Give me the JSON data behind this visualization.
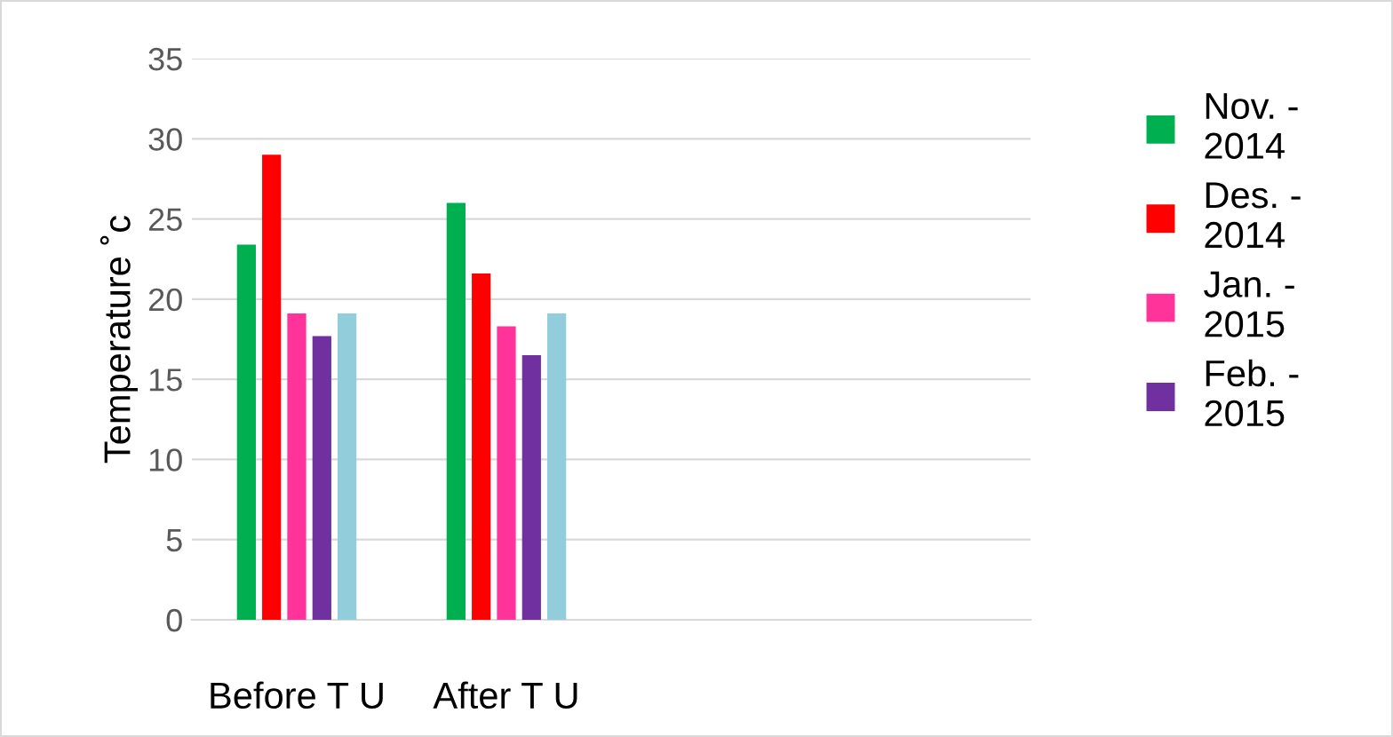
{
  "chart_data": {
    "type": "bar",
    "ylabel": "Temperature ˚c",
    "categories": [
      "Before T U",
      "After T U",
      null,
      null
    ],
    "series": [
      {
        "name": "Nov. -\n2014",
        "color": "#00b050",
        "values": [
          23.4,
          26.0,
          null,
          null
        ]
      },
      {
        "name": "Des. -\n2014",
        "color": "#ff0000",
        "values": [
          29.0,
          21.6,
          null,
          null
        ]
      },
      {
        "name": "Jan. -\n2015",
        "color": "#ff3399",
        "values": [
          19.1,
          18.3,
          null,
          null
        ]
      },
      {
        "name": "Feb. -\n2015",
        "color": "#7030a0",
        "values": [
          17.7,
          16.5,
          null,
          null
        ]
      },
      {
        "color": "#92cddc",
        "values": [
          19.1,
          19.1,
          null,
          null
        ]
      }
    ],
    "ylim": [
      0,
      35
    ],
    "yticks": [
      0,
      5,
      10,
      15,
      20,
      25,
      30,
      35
    ],
    "grid": "y",
    "legend": "right"
  }
}
